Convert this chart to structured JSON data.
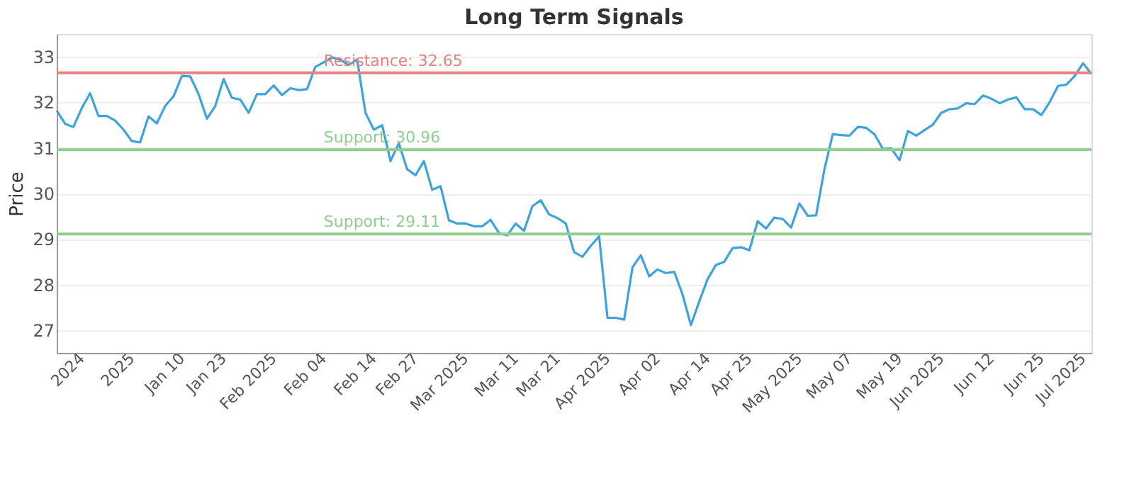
{
  "chart_data": {
    "type": "line",
    "title": "Long Term Signals",
    "ylabel": "Price",
    "categories": [
      null,
      null,
      null,
      "2024",
      null,
      null,
      null,
      null,
      null,
      "2025",
      null,
      null,
      null,
      null,
      null,
      "Jan 10",
      null,
      null,
      null,
      null,
      "Jan 23",
      null,
      null,
      null,
      null,
      null,
      "Feb 2025",
      null,
      null,
      null,
      null,
      null,
      "Feb 04",
      null,
      null,
      null,
      null,
      null,
      "Feb 14",
      null,
      null,
      null,
      null,
      "Feb 27",
      null,
      null,
      null,
      null,
      null,
      "Mar 2025",
      null,
      null,
      null,
      null,
      null,
      "Mar 11",
      null,
      null,
      null,
      null,
      "Mar 21",
      null,
      null,
      null,
      null,
      null,
      "Apr 2025",
      null,
      null,
      null,
      null,
      null,
      "Apr 02",
      null,
      null,
      null,
      null,
      null,
      "Apr 14",
      null,
      null,
      null,
      null,
      "Apr 25",
      null,
      null,
      null,
      null,
      null,
      "May 2025",
      null,
      null,
      null,
      null,
      null,
      "May 07",
      null,
      null,
      null,
      null,
      null,
      "May 19",
      null,
      null,
      null,
      null,
      "Jun 2025",
      null,
      null,
      null,
      null,
      null,
      "Jun 12",
      null,
      null,
      null,
      null,
      null,
      "Jun 25",
      null,
      null,
      null,
      null,
      "Jul 2025",
      null
    ],
    "series": [
      {
        "color": "#3ea3dc",
        "values": [
          31.82,
          31.53,
          31.46,
          31.87,
          32.2,
          31.7,
          31.7,
          31.6,
          31.4,
          31.15,
          31.12,
          31.69,
          31.54,
          31.92,
          32.13,
          32.58,
          32.57,
          32.18,
          31.64,
          31.92,
          32.51,
          32.1,
          32.06,
          31.77,
          32.18,
          32.18,
          32.37,
          32.16,
          32.31,
          32.27,
          32.29,
          32.78,
          32.88,
          32.99,
          32.93,
          32.82,
          32.94,
          31.77,
          31.4,
          31.5,
          30.71,
          31.1,
          30.53,
          30.4,
          30.71,
          30.08,
          30.16,
          29.41,
          29.34,
          29.34,
          29.28,
          29.28,
          29.42,
          29.13,
          29.08,
          29.34,
          29.18,
          29.72,
          29.85,
          29.54,
          29.46,
          29.34,
          28.71,
          28.61,
          28.85,
          29.06,
          27.27,
          27.27,
          27.23,
          28.38,
          28.64,
          28.18,
          28.33,
          28.25,
          28.28,
          27.78,
          27.11,
          27.63,
          28.12,
          28.43,
          28.5,
          28.8,
          28.82,
          28.75,
          29.39,
          29.23,
          29.47,
          29.44,
          29.25,
          29.78,
          29.51,
          29.52,
          30.53,
          31.3,
          31.28,
          31.27,
          31.46,
          31.44,
          31.3,
          30.98,
          30.99,
          30.73,
          31.37,
          31.27,
          31.39,
          31.51,
          31.77,
          31.85,
          31.87,
          31.98,
          31.96,
          32.15,
          32.08,
          31.98,
          32.06,
          32.11,
          31.85,
          31.85,
          31.72,
          32.01,
          32.36,
          32.39,
          32.58,
          32.86,
          32.62
        ]
      }
    ],
    "ylim": [
      26.5,
      33.5
    ],
    "yticks": [
      27,
      28,
      29,
      30,
      31,
      32,
      33
    ],
    "ref_lines": [
      {
        "axis": "y",
        "value": 32.65,
        "label": "Resistance: 32.65",
        "color": "#e88080"
      },
      {
        "axis": "y",
        "value": 30.96,
        "label": "Support: 30.96",
        "color": "#8fce8f"
      },
      {
        "axis": "y",
        "value": 29.11,
        "label": "Support: 29.11",
        "color": "#8fce8f"
      }
    ],
    "grid": "y",
    "marker": "none",
    "line_style": "solid"
  }
}
